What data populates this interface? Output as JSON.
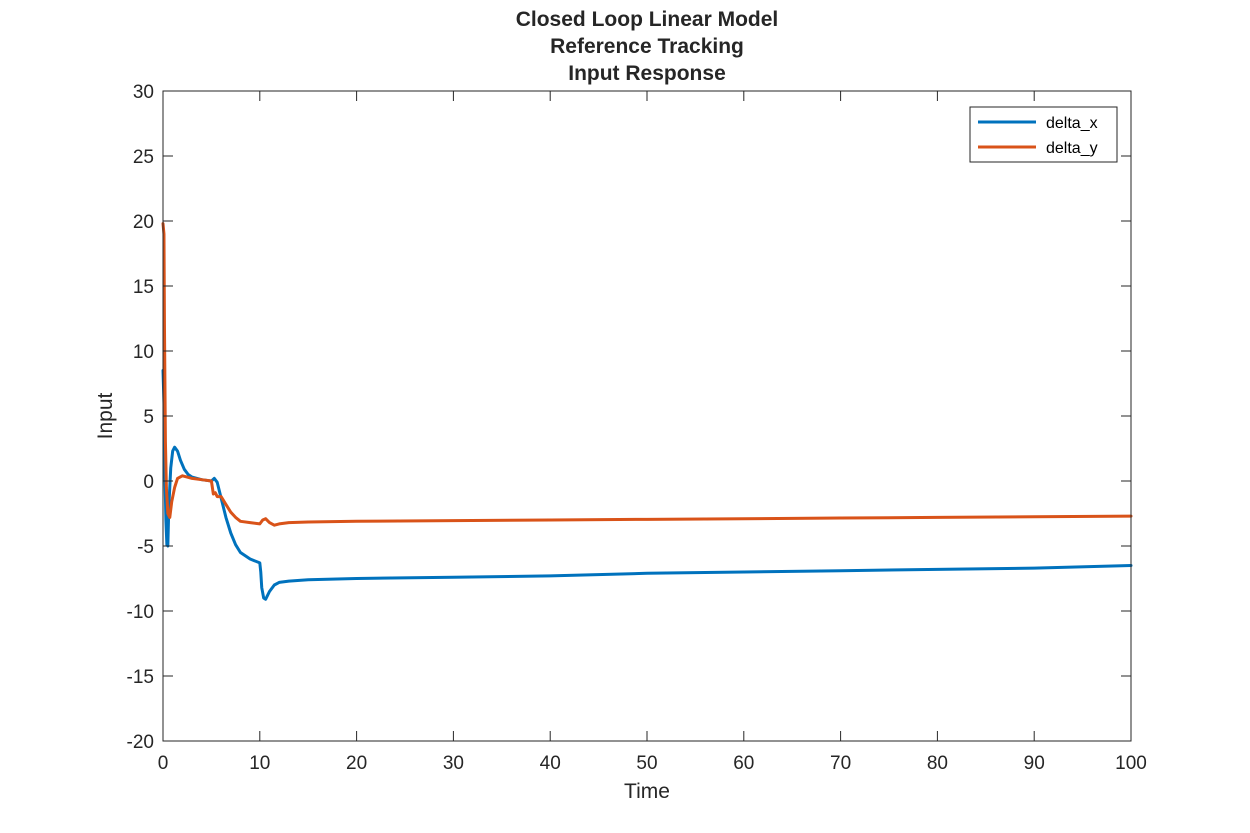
{
  "chart_data": {
    "type": "line",
    "title": [
      "Closed Loop Linear Model",
      "Reference Tracking",
      "Input Response"
    ],
    "xlabel": "Time",
    "ylabel": "Input",
    "xlim": [
      0,
      100
    ],
    "ylim": [
      -20,
      30
    ],
    "xticks": [
      0,
      10,
      20,
      30,
      40,
      50,
      60,
      70,
      80,
      90,
      100
    ],
    "yticks": [
      -20,
      -15,
      -10,
      -5,
      0,
      5,
      10,
      15,
      20,
      25,
      30
    ],
    "grid": false,
    "legend_position": "top-right",
    "series": [
      {
        "name": "delta_x",
        "color": "#0072BD",
        "x": [
          0,
          0.1,
          0.2,
          0.3,
          0.4,
          0.5,
          0.6,
          0.8,
          1.0,
          1.2,
          1.5,
          1.8,
          2.2,
          2.6,
          3.0,
          4.0,
          5.0,
          5.3,
          5.6,
          6.0,
          6.5,
          7.0,
          7.5,
          8.0,
          9.0,
          10.0,
          10.1,
          10.2,
          10.4,
          10.6,
          11.0,
          11.5,
          12.0,
          13.0,
          15.0,
          20.0,
          30.0,
          40.0,
          50.0,
          60.0,
          70.0,
          80.0,
          90.0,
          100.0
        ],
        "y": [
          8.5,
          6.0,
          0.5,
          -3.0,
          -4.9,
          -5.0,
          -2.0,
          1.0,
          2.3,
          2.6,
          2.3,
          1.6,
          0.9,
          0.5,
          0.3,
          0.1,
          0.0,
          0.2,
          -0.1,
          -1.3,
          -2.8,
          -4.0,
          -4.9,
          -5.5,
          -6.0,
          -6.3,
          -7.0,
          -8.2,
          -9.0,
          -9.1,
          -8.5,
          -8.0,
          -7.8,
          -7.7,
          -7.6,
          -7.5,
          -7.4,
          -7.3,
          -7.1,
          -7.0,
          -6.9,
          -6.8,
          -6.7,
          -6.5
        ]
      },
      {
        "name": "delta_y",
        "color": "#D95319",
        "x": [
          0,
          0.1,
          0.15,
          0.25,
          0.35,
          0.5,
          0.7,
          0.9,
          1.2,
          1.5,
          2.0,
          2.5,
          3.0,
          4.0,
          5.0,
          5.2,
          5.4,
          5.6,
          6.0,
          6.5,
          7.0,
          7.5,
          8.0,
          9.0,
          10.0,
          10.3,
          10.6,
          11.0,
          11.5,
          12.0,
          13.0,
          15.0,
          20.0,
          30.0,
          40.0,
          50.0,
          60.0,
          70.0,
          80.0,
          90.0,
          100.0
        ],
        "y": [
          19.8,
          19.0,
          12.0,
          3.0,
          -0.5,
          -2.5,
          -2.8,
          -1.6,
          -0.5,
          0.2,
          0.4,
          0.3,
          0.2,
          0.1,
          0.0,
          -1.0,
          -0.9,
          -1.2,
          -1.2,
          -1.8,
          -2.4,
          -2.8,
          -3.1,
          -3.2,
          -3.3,
          -3.0,
          -2.9,
          -3.2,
          -3.4,
          -3.3,
          -3.2,
          -3.15,
          -3.1,
          -3.05,
          -3.0,
          -2.95,
          -2.9,
          -2.85,
          -2.8,
          -2.75,
          -2.7
        ]
      }
    ]
  }
}
